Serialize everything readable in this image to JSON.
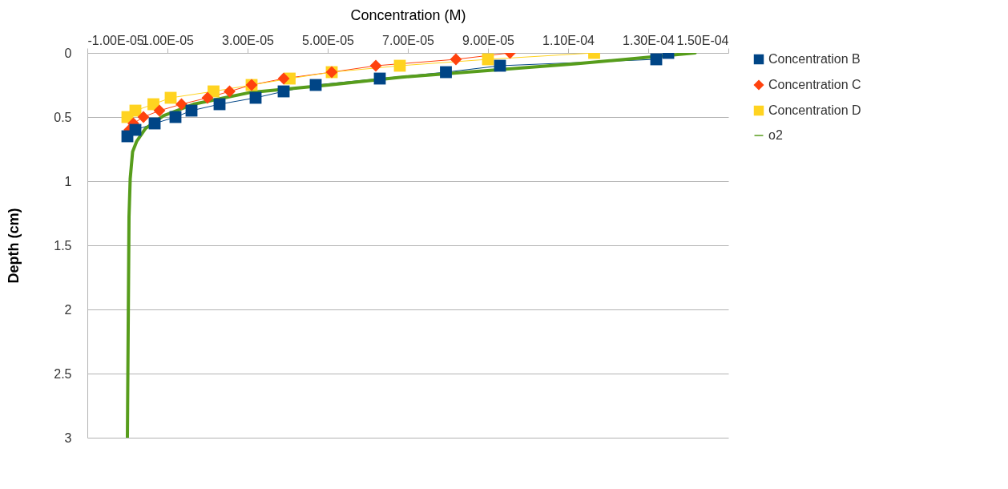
{
  "chart_data": {
    "type": "line",
    "xlabel": "Concentration (M)",
    "ylabel": "Depth (cm)",
    "xlim": [
      -1e-05,
      0.00015
    ],
    "xticks": [
      {
        "value": -1e-05,
        "label": "-1.00E-05"
      },
      {
        "value": 1e-05,
        "label": "1.00E-05"
      },
      {
        "value": 3e-05,
        "label": "3.00E-05"
      },
      {
        "value": 5e-05,
        "label": "5.00E-05"
      },
      {
        "value": 7e-05,
        "label": "7.00E-05"
      },
      {
        "value": 9e-05,
        "label": "9.00E-05"
      },
      {
        "value": 0.00011,
        "label": "1.10E-04"
      },
      {
        "value": 0.00013,
        "label": "1.30E-04"
      },
      {
        "value": 0.00015,
        "label": "1.50E-04"
      }
    ],
    "ylim": [
      3,
      0
    ],
    "yticks": [
      0,
      0.5,
      1,
      1.5,
      2,
      2.5,
      3
    ],
    "grid": "y",
    "legend": "right",
    "series": [
      {
        "name": "Concentration  B",
        "color": "#004586",
        "marker": "square",
        "x": [
          0.000135,
          0.000132,
          9.3e-05,
          7.95e-05,
          6.3e-05,
          4.7e-05,
          3.9e-05,
          3.2e-05,
          2.3e-05,
          1.6e-05,
          1.2e-05,
          6.8e-06,
          2e-06,
          0
        ],
        "values": [
          0,
          0.05,
          0.1,
          0.15,
          0.2,
          0.25,
          0.3,
          0.35,
          0.4,
          0.45,
          0.5,
          0.55,
          0.6,
          0.65
        ]
      },
      {
        "name": "Concentration  C",
        "color": "#ff420e",
        "marker": "diamond",
        "x": [
          9.55e-05,
          8.2e-05,
          6.2e-05,
          5.1e-05,
          3.9e-05,
          3.1e-05,
          2.55e-05,
          2e-05,
          1.35e-05,
          8e-06,
          4e-06,
          1.5e-06,
          5e-07
        ],
        "values": [
          0,
          0.05,
          0.1,
          0.15,
          0.2,
          0.25,
          0.3,
          0.35,
          0.4,
          0.45,
          0.5,
          0.55,
          0.6
        ]
      },
      {
        "name": "Concentration  D",
        "color": "#ffd320",
        "marker": "square",
        "x": [
          0.0001165,
          9e-05,
          6.8e-05,
          5.1e-05,
          4.05e-05,
          3.1e-05,
          2.15e-05,
          1.08e-05,
          6.5e-06,
          2e-06,
          0
        ],
        "values": [
          0,
          0.05,
          0.1,
          0.15,
          0.2,
          0.25,
          0.3,
          0.35,
          0.4,
          0.45,
          0.5
        ]
      },
      {
        "name": "o2",
        "color": "#579d1c",
        "marker": "none",
        "x": [
          0.0001417,
          0.000112,
          6.8e-05,
          5.03e-05,
          3.04e-05,
          1.65e-05,
          9e-06,
          4.5e-06,
          2.3e-06,
          1.3e-06,
          7e-07,
          4e-07,
          0
        ],
        "values": [
          0,
          0.085,
          0.19,
          0.25,
          0.31,
          0.4,
          0.49,
          0.59,
          0.69,
          0.77,
          0.98,
          1.28,
          3
        ]
      }
    ]
  }
}
